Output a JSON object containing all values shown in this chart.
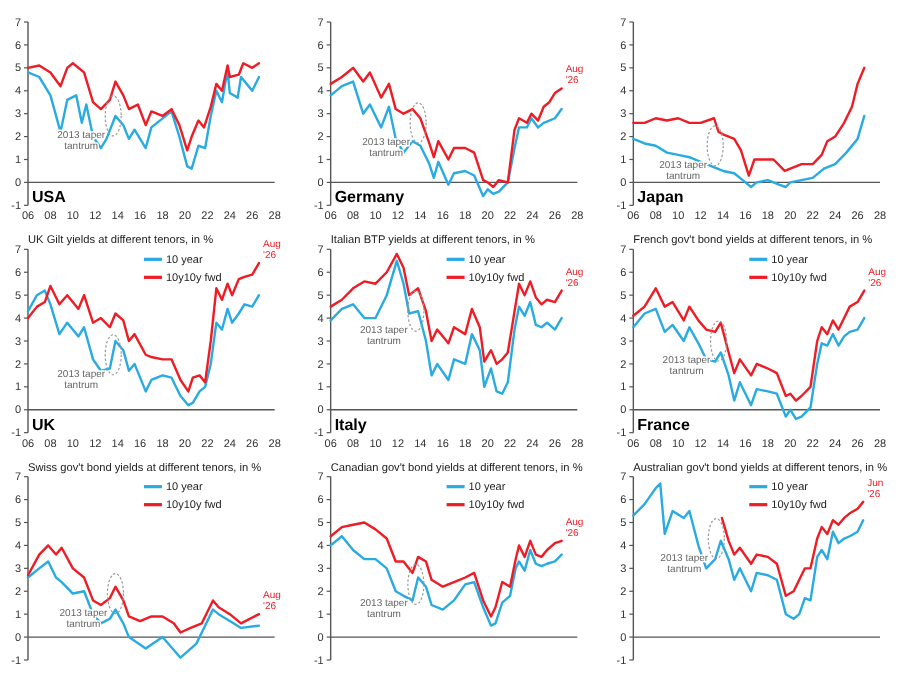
{
  "chart_data": [
    {
      "type": "line",
      "xlim": [
        2006,
        2028
      ],
      "xticks": [
        {
          "value": 2006,
          "label": "06"
        },
        {
          "value": 2008,
          "label": "08"
        },
        {
          "value": 2010,
          "label": "10"
        },
        {
          "value": 2012,
          "label": "12"
        },
        {
          "value": 2014,
          "label": "14"
        },
        {
          "value": 2016,
          "label": "16"
        },
        {
          "value": 2018,
          "label": "18"
        },
        {
          "value": 2020,
          "label": "20"
        },
        {
          "value": 2022,
          "label": "22"
        },
        {
          "value": 2024,
          "label": "24"
        },
        {
          "value": 2026,
          "label": "26"
        },
        {
          "value": 2028,
          "label": "28"
        }
      ],
      "ylim": [
        -1,
        7
      ],
      "yticks": [
        -1,
        0,
        1,
        2,
        3,
        4,
        5,
        6,
        7
      ],
      "series": [
        {
          "color": "#29abe2",
          "x": [
            2006,
            2007,
            2008,
            2008.9,
            2009.5,
            2010.3,
            2010.8,
            2011.2,
            2011.8,
            2012.5,
            2013,
            2013.8,
            2014.5,
            2015,
            2015.5,
            2016.5,
            2017,
            2018.8,
            2019.5,
            2020.2,
            2020.6,
            2021.2,
            2021.8,
            2022.3,
            2022.8,
            2023.3,
            2023.8,
            2024,
            2024.7,
            2025,
            2025.5,
            2026,
            2026.6
          ],
          "values": [
            4.8,
            4.6,
            3.8,
            2.2,
            3.6,
            3.8,
            2.6,
            3.4,
            2.0,
            1.5,
            1.9,
            2.9,
            2.5,
            1.9,
            2.3,
            1.5,
            2.4,
            3.1,
            2.0,
            0.7,
            0.6,
            1.6,
            1.5,
            2.9,
            4.0,
            3.5,
            4.9,
            3.9,
            3.7,
            4.6,
            4.3,
            4.0,
            4.6
          ]
        },
        {
          "color": "#ee1c24",
          "x": [
            2006,
            2007,
            2008,
            2008.9,
            2009.5,
            2010,
            2011,
            2011.8,
            2012.5,
            2013.3,
            2013.8,
            2014.5,
            2015,
            2015.8,
            2016.5,
            2017,
            2018,
            2018.8,
            2019.5,
            2020.2,
            2020.6,
            2021.2,
            2021.7,
            2022.3,
            2022.8,
            2023.3,
            2023.8,
            2024,
            2024.8,
            2025.2,
            2026,
            2026.6
          ],
          "values": [
            5.0,
            5.1,
            4.8,
            4.2,
            5.0,
            5.2,
            4.8,
            3.5,
            3.2,
            3.6,
            4.4,
            3.8,
            3.2,
            3.4,
            2.5,
            3.1,
            2.9,
            3.2,
            2.5,
            1.4,
            2.0,
            2.7,
            2.4,
            3.3,
            4.3,
            4.0,
            5.1,
            4.6,
            4.7,
            5.2,
            5.0,
            5.2
          ]
        }
      ],
      "annotations": [
        {
          "text": "2013 taper tantrum",
          "x": 2013.6,
          "y": 2.9
        },
        "USA"
      ]
    },
    {
      "type": "line",
      "xlim": [
        2006,
        2028
      ],
      "xticks": [
        {
          "value": 2006,
          "label": "06"
        },
        {
          "value": 2008,
          "label": "08"
        },
        {
          "value": 2010,
          "label": "10"
        },
        {
          "value": 2012,
          "label": "12"
        },
        {
          "value": 2014,
          "label": "14"
        },
        {
          "value": 2016,
          "label": "16"
        },
        {
          "value": 2018,
          "label": "18"
        },
        {
          "value": 2020,
          "label": "20"
        },
        {
          "value": 2022,
          "label": "22"
        },
        {
          "value": 2024,
          "label": "24"
        },
        {
          "value": 2026,
          "label": "26"
        },
        {
          "value": 2028,
          "label": "28"
        }
      ],
      "ylim": [
        -1,
        7
      ],
      "yticks": [
        -1,
        0,
        1,
        2,
        3,
        4,
        5,
        6,
        7
      ],
      "series": [
        {
          "color": "#29abe2",
          "x": [
            2006,
            2007,
            2008,
            2008.9,
            2009.5,
            2010.5,
            2011.2,
            2011.8,
            2012.5,
            2013.3,
            2014,
            2014.8,
            2015.2,
            2015.6,
            2016.5,
            2017,
            2018,
            2018.8,
            2019.6,
            2020,
            2020.5,
            2021,
            2021.8,
            2022.4,
            2022.8,
            2023.5,
            2023.9,
            2024.5,
            2025,
            2025.5,
            2026,
            2026.6
          ],
          "values": [
            3.8,
            4.2,
            4.4,
            3.0,
            3.4,
            2.4,
            3.3,
            1.9,
            1.3,
            1.8,
            1.6,
            0.8,
            0.2,
            0.9,
            -0.1,
            0.4,
            0.5,
            0.3,
            -0.6,
            -0.3,
            -0.5,
            -0.4,
            0.0,
            1.5,
            2.4,
            2.4,
            2.8,
            2.4,
            2.6,
            2.7,
            2.8,
            3.2
          ]
        },
        {
          "color": "#ee1c24",
          "x": [
            2006,
            2007,
            2008,
            2008.9,
            2009.5,
            2010.5,
            2011.2,
            2011.8,
            2012.5,
            2013.3,
            2014,
            2014.8,
            2015.2,
            2015.6,
            2016.5,
            2017,
            2018,
            2018.8,
            2019.6,
            2020,
            2020.5,
            2021,
            2021.8,
            2022.4,
            2022.8,
            2023.5,
            2023.9,
            2024.5,
            2025,
            2025.5,
            2026,
            2026.6
          ],
          "values": [
            4.3,
            4.6,
            5.0,
            4.4,
            4.8,
            3.7,
            4.3,
            3.2,
            3.0,
            3.2,
            2.8,
            1.7,
            1.1,
            1.8,
            1.0,
            1.5,
            1.5,
            1.3,
            0.1,
            0.0,
            -0.2,
            0.1,
            0.0,
            2.3,
            2.8,
            2.6,
            3.0,
            2.7,
            3.3,
            3.5,
            3.9,
            4.1
          ]
        }
      ],
      "annotations": [
        {
          "text": "2013 taper tantrum",
          "x": 2013.8,
          "y": 2.6
        },
        {
          "text": "Aug '26",
          "x": 2026.6,
          "y": 4.1
        },
        "Germany"
      ]
    },
    {
      "type": "line",
      "xlim": [
        2006,
        2028
      ],
      "xticks": [
        {
          "value": 2006,
          "label": "06"
        },
        {
          "value": 2008,
          "label": "08"
        },
        {
          "value": 2010,
          "label": "10"
        },
        {
          "value": 2012,
          "label": "12"
        },
        {
          "value": 2014,
          "label": "14"
        },
        {
          "value": 2016,
          "label": "16"
        },
        {
          "value": 2018,
          "label": "18"
        },
        {
          "value": 2020,
          "label": "20"
        },
        {
          "value": 2022,
          "label": "22"
        },
        {
          "value": 2024,
          "label": "24"
        },
        {
          "value": 2026,
          "label": "26"
        },
        {
          "value": 2028,
          "label": "28"
        }
      ],
      "ylim": [
        -1,
        7
      ],
      "yticks": [
        -1,
        0,
        1,
        2,
        3,
        4,
        5,
        6,
        7
      ],
      "series": [
        {
          "color": "#29abe2",
          "x": [
            2006,
            2007,
            2008,
            2009,
            2010,
            2011,
            2012,
            2013,
            2014,
            2015,
            2016,
            2016.5,
            2017,
            2018,
            2019,
            2019.6,
            2020,
            2021,
            2022,
            2023,
            2024,
            2025,
            2026,
            2026.6
          ],
          "values": [
            1.9,
            1.7,
            1.6,
            1.3,
            1.2,
            1.1,
            0.9,
            0.7,
            0.5,
            0.4,
            0.0,
            -0.2,
            0.0,
            0.1,
            -0.1,
            -0.2,
            0.0,
            0.1,
            0.2,
            0.6,
            0.8,
            1.3,
            1.9,
            2.9
          ]
        },
        {
          "color": "#ee1c24",
          "x": [
            2006,
            2007,
            2008,
            2009,
            2010,
            2011,
            2012,
            2013.2,
            2013.6,
            2014,
            2015,
            2015.6,
            2016.3,
            2016.8,
            2017.5,
            2018.5,
            2019.5,
            2020,
            2021,
            2022,
            2022.8,
            2023.3,
            2024,
            2024.8,
            2025.5,
            2026,
            2026.6
          ],
          "values": [
            2.6,
            2.6,
            2.8,
            2.7,
            2.8,
            2.6,
            2.6,
            2.8,
            2.2,
            2.1,
            1.9,
            1.4,
            0.3,
            1.0,
            1.0,
            1.0,
            0.5,
            0.6,
            0.8,
            0.8,
            1.2,
            1.8,
            2.0,
            2.6,
            3.3,
            4.3,
            5.0
          ]
        }
      ],
      "annotations": [
        {
          "text": "2013 taper tantrum",
          "x": 2013.3,
          "y": 1.6
        },
        "Japan"
      ]
    },
    {
      "type": "line",
      "title": "UK Gilt yields at different tenors, in %",
      "legend": "top",
      "xlim": [
        2006,
        2028
      ],
      "xticks": [
        {
          "value": 2006,
          "label": "06"
        },
        {
          "value": 2008,
          "label": "08"
        },
        {
          "value": 2010,
          "label": "10"
        },
        {
          "value": 2012,
          "label": "12"
        },
        {
          "value": 2014,
          "label": "14"
        },
        {
          "value": 2016,
          "label": "16"
        },
        {
          "value": 2018,
          "label": "18"
        },
        {
          "value": 2020,
          "label": "20"
        },
        {
          "value": 2022,
          "label": "22"
        },
        {
          "value": 2024,
          "label": "24"
        },
        {
          "value": 2026,
          "label": "26"
        },
        {
          "value": 2028,
          "label": "28"
        }
      ],
      "ylim": [
        -1,
        7
      ],
      "yticks": [
        -1,
        0,
        1,
        2,
        3,
        4,
        5,
        6,
        7
      ],
      "series": [
        {
          "name": "10 year",
          "color": "#29abe2",
          "x": [
            2006,
            2006.8,
            2007.5,
            2008,
            2008.8,
            2009.5,
            2010.5,
            2011,
            2011.8,
            2012.5,
            2013.3,
            2013.8,
            2014.5,
            2015,
            2015.5,
            2016.5,
            2017,
            2018,
            2018.8,
            2019.6,
            2020.3,
            2020.7,
            2021.3,
            2021.8,
            2022.3,
            2022.8,
            2023.3,
            2023.8,
            2024.2,
            2024.8,
            2025.3,
            2026,
            2026.6
          ],
          "values": [
            4.3,
            5.0,
            5.2,
            4.6,
            3.3,
            3.8,
            3.2,
            3.6,
            2.2,
            1.7,
            1.8,
            3.0,
            2.6,
            1.7,
            2.0,
            0.8,
            1.3,
            1.5,
            1.4,
            0.6,
            0.2,
            0.3,
            0.8,
            1.0,
            2.0,
            3.8,
            3.5,
            4.4,
            3.8,
            4.2,
            4.6,
            4.5,
            5.0
          ]
        },
        {
          "name": "10y10y fwd",
          "color": "#ee1c24",
          "x": [
            2006,
            2006.8,
            2007.5,
            2008,
            2008.8,
            2009.5,
            2010.5,
            2011,
            2011.8,
            2012.5,
            2013.3,
            2013.8,
            2014.5,
            2015,
            2015.5,
            2016.5,
            2017,
            2018,
            2018.8,
            2019.6,
            2020.3,
            2020.7,
            2021.3,
            2021.8,
            2022.3,
            2022.8,
            2023.3,
            2023.8,
            2024.2,
            2024.8,
            2025.3,
            2026,
            2026.6
          ],
          "values": [
            4.0,
            4.5,
            4.7,
            5.4,
            4.6,
            5.0,
            4.4,
            5.0,
            3.8,
            4.0,
            3.6,
            4.2,
            3.9,
            3.0,
            3.3,
            2.4,
            2.3,
            2.2,
            2.2,
            1.3,
            0.8,
            1.4,
            1.5,
            1.2,
            3.0,
            5.3,
            4.8,
            5.5,
            5.0,
            5.7,
            5.8,
            5.9,
            6.4
          ]
        }
      ],
      "annotations": [
        {
          "text": "2013 taper tantrum",
          "x": 2013.6,
          "y": 2.4
        },
        {
          "text": "Aug '26",
          "x": 2026.6,
          "y": 6.4
        },
        "UK"
      ]
    },
    {
      "type": "line",
      "title": "Italian BTP yields at different tenors, in %",
      "legend": "top",
      "xlim": [
        2006,
        2028
      ],
      "xticks": [
        {
          "value": 2006,
          "label": "06"
        },
        {
          "value": 2008,
          "label": "08"
        },
        {
          "value": 2010,
          "label": "10"
        },
        {
          "value": 2012,
          "label": "12"
        },
        {
          "value": 2014,
          "label": "14"
        },
        {
          "value": 2016,
          "label": "16"
        },
        {
          "value": 2018,
          "label": "18"
        },
        {
          "value": 2020,
          "label": "20"
        },
        {
          "value": 2022,
          "label": "22"
        },
        {
          "value": 2024,
          "label": "24"
        },
        {
          "value": 2026,
          "label": "26"
        },
        {
          "value": 2028,
          "label": "28"
        }
      ],
      "ylim": [
        -1,
        7
      ],
      "yticks": [
        -1,
        0,
        1,
        2,
        3,
        4,
        5,
        6,
        7
      ],
      "series": [
        {
          "name": "10 year",
          "color": "#29abe2",
          "x": [
            2006,
            2007,
            2008,
            2009,
            2010,
            2011,
            2011.9,
            2012.5,
            2013,
            2013.8,
            2014.5,
            2015,
            2015.5,
            2016.5,
            2017,
            2018,
            2018.6,
            2019.3,
            2019.7,
            2020.3,
            2020.8,
            2021.3,
            2021.8,
            2022.4,
            2022.8,
            2023.3,
            2023.8,
            2024.3,
            2024.8,
            2025.3,
            2026,
            2026.6
          ],
          "values": [
            3.9,
            4.4,
            4.6,
            4.0,
            4.0,
            5.0,
            6.5,
            5.5,
            4.2,
            4.3,
            3.0,
            1.5,
            2.0,
            1.3,
            2.2,
            2.0,
            3.3,
            2.6,
            1.0,
            1.8,
            0.8,
            0.7,
            1.2,
            3.5,
            4.5,
            4.1,
            4.7,
            3.7,
            3.6,
            3.8,
            3.5,
            4.0
          ]
        },
        {
          "name": "10y10y fwd",
          "color": "#ee1c24",
          "x": [
            2006,
            2007,
            2008,
            2009,
            2010,
            2011,
            2011.9,
            2012.5,
            2013,
            2013.8,
            2014.5,
            2015,
            2015.5,
            2016.5,
            2017,
            2018,
            2018.6,
            2019.3,
            2019.7,
            2020.3,
            2020.8,
            2021.3,
            2021.8,
            2022.4,
            2022.8,
            2023.3,
            2023.8,
            2024.3,
            2024.8,
            2025.3,
            2026,
            2026.6
          ],
          "values": [
            4.5,
            4.8,
            5.3,
            5.6,
            5.5,
            6.0,
            6.8,
            6.2,
            5.0,
            5.3,
            4.3,
            3.0,
            3.5,
            2.9,
            3.6,
            3.3,
            4.4,
            3.6,
            2.1,
            2.6,
            2.0,
            2.2,
            2.5,
            4.3,
            5.5,
            5.0,
            5.6,
            4.9,
            4.6,
            4.8,
            4.7,
            5.2
          ]
        }
      ],
      "annotations": [
        {
          "text": "2013 taper tantrum",
          "x": 2013.6,
          "y": 4.3
        },
        {
          "text": "Aug '26",
          "x": 2026.6,
          "y": 5.2
        },
        "Italy"
      ]
    },
    {
      "type": "line",
      "title": "French gov't bond yields at different tenors, in %",
      "legend": "top",
      "xlim": [
        2006,
        2028
      ],
      "xticks": [
        {
          "value": 2006,
          "label": "06"
        },
        {
          "value": 2008,
          "label": "08"
        },
        {
          "value": 2010,
          "label": "10"
        },
        {
          "value": 2012,
          "label": "12"
        },
        {
          "value": 2014,
          "label": "14"
        },
        {
          "value": 2016,
          "label": "16"
        },
        {
          "value": 2018,
          "label": "18"
        },
        {
          "value": 2020,
          "label": "20"
        },
        {
          "value": 2022,
          "label": "22"
        },
        {
          "value": 2024,
          "label": "24"
        },
        {
          "value": 2026,
          "label": "26"
        },
        {
          "value": 2028,
          "label": "28"
        }
      ],
      "ylim": [
        -1,
        7
      ],
      "yticks": [
        -1,
        0,
        1,
        2,
        3,
        4,
        5,
        6,
        7
      ],
      "series": [
        {
          "name": "10 year",
          "color": "#29abe2",
          "x": [
            2006,
            2007,
            2008,
            2008.8,
            2009.5,
            2010.5,
            2011,
            2011.8,
            2012.5,
            2013.3,
            2013.8,
            2014.5,
            2015,
            2015.5,
            2016.5,
            2017,
            2018,
            2018.8,
            2019.6,
            2020,
            2020.5,
            2021,
            2021.8,
            2022.4,
            2022.8,
            2023.3,
            2023.8,
            2024.3,
            2024.8,
            2025.3,
            2026,
            2026.6
          ],
          "values": [
            3.6,
            4.2,
            4.4,
            3.4,
            3.7,
            3.0,
            3.6,
            2.9,
            2.2,
            2.1,
            2.5,
            1.5,
            0.4,
            1.2,
            0.2,
            0.9,
            0.8,
            0.7,
            -0.3,
            0.0,
            -0.4,
            -0.3,
            0.1,
            2.0,
            2.9,
            2.8,
            3.3,
            2.8,
            3.2,
            3.4,
            3.5,
            4.0
          ]
        },
        {
          "name": "10y10y fwd",
          "color": "#ee1c24",
          "x": [
            2006,
            2007,
            2008,
            2008.8,
            2009.5,
            2010.5,
            2011,
            2011.8,
            2012.5,
            2013.3,
            2013.8,
            2014.5,
            2015,
            2015.5,
            2016.5,
            2017,
            2018,
            2018.8,
            2019.6,
            2020,
            2020.5,
            2021,
            2021.8,
            2022.4,
            2022.8,
            2023.3,
            2023.8,
            2024.3,
            2024.8,
            2025.3,
            2026,
            2026.6
          ],
          "values": [
            4.1,
            4.5,
            5.3,
            4.5,
            4.7,
            3.9,
            4.5,
            3.9,
            3.5,
            3.4,
            3.8,
            2.5,
            1.6,
            2.2,
            1.5,
            2.0,
            1.8,
            1.6,
            0.6,
            0.7,
            0.4,
            0.6,
            1.0,
            3.0,
            3.6,
            3.3,
            3.9,
            3.5,
            4.0,
            4.5,
            4.7,
            5.2
          ]
        }
      ],
      "annotations": [
        {
          "text": "2013 taper tantrum",
          "x": 2013.6,
          "y": 3.0
        },
        {
          "text": "Aug '26",
          "x": 2026.6,
          "y": 5.2
        },
        "France"
      ]
    },
    {
      "type": "line",
      "title": "Swiss gov't bond yields at different tenors, in %",
      "legend": "top",
      "tick_labels": "y",
      "xlim": [
        2006,
        2028
      ],
      "ylim": [
        -1,
        7
      ],
      "yticks": [
        -1,
        0,
        1,
        2,
        3,
        4,
        5,
        6,
        7
      ],
      "series": [
        {
          "name": "10 year",
          "color": "#29abe2",
          "x": [
            2006,
            2007,
            2007.8,
            2008.5,
            2009,
            2010,
            2011,
            2011.8,
            2012.5,
            2013.3,
            2013.8,
            2014.5,
            2015,
            2016.5,
            2018,
            2019.6,
            2021,
            2022.5,
            2023,
            2024,
            2025,
            2026.6
          ],
          "values": [
            2.6,
            3.0,
            3.3,
            2.6,
            2.4,
            1.9,
            2.0,
            1.0,
            0.6,
            0.8,
            1.2,
            0.6,
            0.0,
            -0.5,
            0.0,
            -0.9,
            -0.3,
            1.2,
            1.0,
            0.7,
            0.4,
            0.5
          ]
        },
        {
          "name": "10y10y fwd",
          "color": "#ee1c24",
          "x": [
            2006,
            2007,
            2007.8,
            2008.5,
            2009,
            2010,
            2011,
            2011.8,
            2012.5,
            2013.3,
            2013.8,
            2014.5,
            2015,
            2016,
            2017,
            2018,
            2019,
            2019.6,
            2020.5,
            2021.5,
            2022.5,
            2023,
            2024,
            2025,
            2026.6
          ],
          "values": [
            2.7,
            3.6,
            4.0,
            3.6,
            3.9,
            3.0,
            2.6,
            1.6,
            1.4,
            1.7,
            2.2,
            1.6,
            0.9,
            0.7,
            0.9,
            0.9,
            0.6,
            0.2,
            0.4,
            0.6,
            1.6,
            1.3,
            1.0,
            0.6,
            1.0
          ]
        }
      ],
      "annotations": [
        {
          "text": "2013 taper tantrum",
          "x": 2013.8,
          "y": 1.9
        },
        {
          "text": "Aug '26",
          "x": 2026.6,
          "y": 1.0
        }
      ]
    },
    {
      "type": "line",
      "title": "Canadian gov't bond yields at different tenors, in %",
      "legend": "top",
      "tick_labels": "y",
      "xlim": [
        2006,
        2028
      ],
      "ylim": [
        -1,
        7
      ],
      "yticks": [
        -1,
        0,
        1,
        2,
        3,
        4,
        5,
        6,
        7
      ],
      "series": [
        {
          "name": "10 year",
          "color": "#29abe2",
          "x": [
            2006,
            2007,
            2008,
            2009,
            2010,
            2011,
            2011.8,
            2012.5,
            2013.3,
            2013.8,
            2014.5,
            2015,
            2016,
            2017,
            2018,
            2018.8,
            2019.6,
            2020.3,
            2020.7,
            2021.3,
            2022,
            2022.5,
            2022.8,
            2023.3,
            2023.8,
            2024.3,
            2024.8,
            2025.3,
            2026,
            2026.6
          ],
          "values": [
            4.0,
            4.4,
            3.8,
            3.4,
            3.4,
            3.0,
            2.0,
            1.8,
            1.6,
            2.6,
            2.2,
            1.4,
            1.2,
            1.6,
            2.3,
            2.4,
            1.3,
            0.5,
            0.6,
            1.5,
            1.8,
            3.0,
            3.3,
            2.9,
            3.8,
            3.2,
            3.1,
            3.2,
            3.3,
            3.6
          ]
        },
        {
          "name": "10y10y fwd",
          "color": "#ee1c24",
          "x": [
            2006,
            2007,
            2008,
            2009,
            2010,
            2011,
            2011.8,
            2012.5,
            2013.3,
            2013.8,
            2014.5,
            2015,
            2016,
            2017,
            2018,
            2018.8,
            2019.6,
            2020.3,
            2020.7,
            2021.3,
            2022,
            2022.5,
            2022.8,
            2023.3,
            2023.8,
            2024.3,
            2024.8,
            2025.3,
            2026,
            2026.6
          ],
          "values": [
            4.4,
            4.8,
            4.9,
            5.0,
            4.7,
            4.3,
            3.3,
            3.3,
            2.8,
            3.5,
            3.3,
            2.5,
            2.2,
            2.4,
            2.6,
            2.8,
            1.6,
            0.9,
            1.3,
            2.4,
            2.2,
            3.4,
            4.0,
            3.5,
            4.2,
            3.6,
            3.5,
            3.8,
            4.1,
            4.2
          ]
        }
      ],
      "annotations": [
        {
          "text": "2013 taper tantrum",
          "x": 2013.6,
          "y": 2.3
        },
        {
          "text": "Aug '26",
          "x": 2026.6,
          "y": 4.2
        }
      ]
    },
    {
      "type": "line",
      "title": "Australian gov't bond yields at different tenors, in %",
      "legend": "top",
      "tick_labels": "y",
      "xlim": [
        2006,
        2028
      ],
      "ylim": [
        -1,
        7
      ],
      "yticks": [
        -1,
        0,
        1,
        2,
        3,
        4,
        5,
        6,
        7
      ],
      "series": [
        {
          "name": "10 year",
          "color": "#29abe2",
          "x": [
            2006,
            2007,
            2008,
            2008.4,
            2008.8,
            2009.5,
            2010.5,
            2011,
            2011.8,
            2012.5,
            2013.3,
            2013.8,
            2014.5,
            2015,
            2015.5,
            2016.5,
            2017,
            2018,
            2018.8,
            2019.6,
            2020.3,
            2020.8,
            2021.3,
            2021.8,
            2022.4,
            2022.8,
            2023.3,
            2023.8,
            2024.3,
            2024.8,
            2025.3,
            2026,
            2026.5
          ],
          "values": [
            5.3,
            5.8,
            6.5,
            6.7,
            4.5,
            5.5,
            5.2,
            5.5,
            4.0,
            3.0,
            3.4,
            4.2,
            3.4,
            2.5,
            3.0,
            2.0,
            2.8,
            2.7,
            2.5,
            1.0,
            0.8,
            1.0,
            1.7,
            1.6,
            3.5,
            3.8,
            3.4,
            4.6,
            4.1,
            4.3,
            4.4,
            4.6,
            5.1
          ]
        },
        {
          "name": "10y10y fwd",
          "color": "#ee1c24",
          "x": [
            2013.9,
            2014.5,
            2015,
            2015.5,
            2016.5,
            2017,
            2018,
            2018.8,
            2019.6,
            2020.3,
            2020.8,
            2021.3,
            2021.8,
            2022.4,
            2022.8,
            2023.3,
            2023.8,
            2024.3,
            2024.8,
            2025.3,
            2026,
            2026.5
          ],
          "values": [
            5.2,
            4.2,
            3.6,
            3.9,
            3.2,
            3.6,
            3.5,
            3.2,
            1.8,
            2.0,
            2.5,
            3.0,
            3.0,
            4.3,
            4.8,
            4.5,
            5.1,
            4.9,
            5.2,
            5.4,
            5.6,
            5.9
          ]
        }
      ],
      "annotations": [
        {
          "text": "2013 taper tantrum",
          "x": 2013.4,
          "y": 4.3
        },
        {
          "text": "Jun '26",
          "x": 2026.5,
          "y": 5.9
        }
      ]
    }
  ]
}
